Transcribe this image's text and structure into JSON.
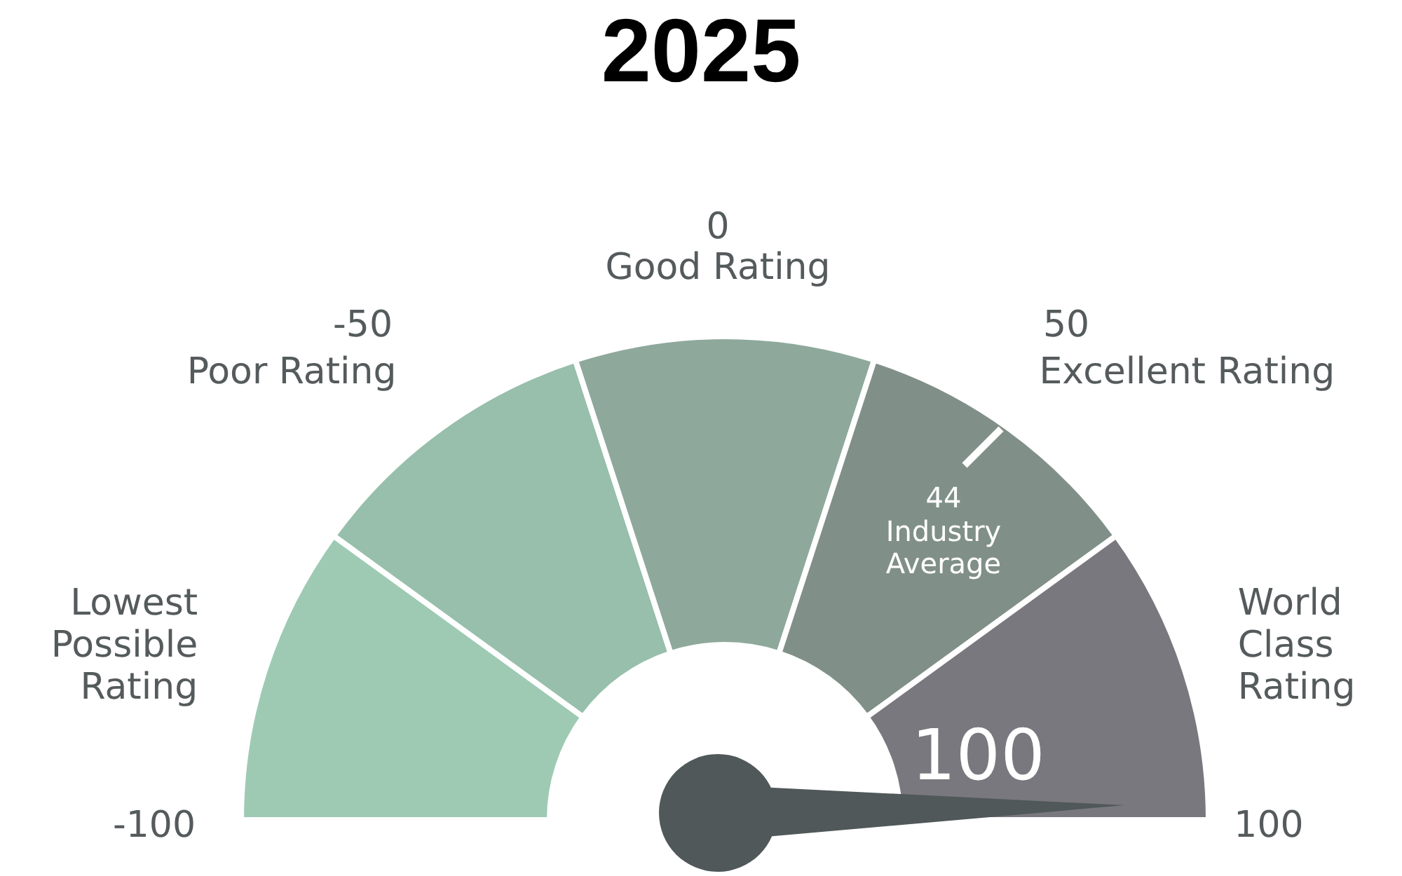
{
  "chart_data": {
    "type": "donut",
    "title": "2025",
    "categories": [
      "Lowest Possible Rating",
      "Poor Rating",
      "Good Rating",
      "Excellent Rating",
      "World Class Rating"
    ],
    "values": [
      20,
      20,
      20,
      20,
      20
    ],
    "colors": [
      "#9ecab4",
      "#97bfab",
      "#8ea99b",
      "#818f89",
      "#78787e"
    ],
    "needle": "World Class Rating",
    "annotations": [
      "-100",
      "-50",
      "0",
      "50",
      "100",
      "44",
      "Industry Average",
      "100"
    ]
  }
}
